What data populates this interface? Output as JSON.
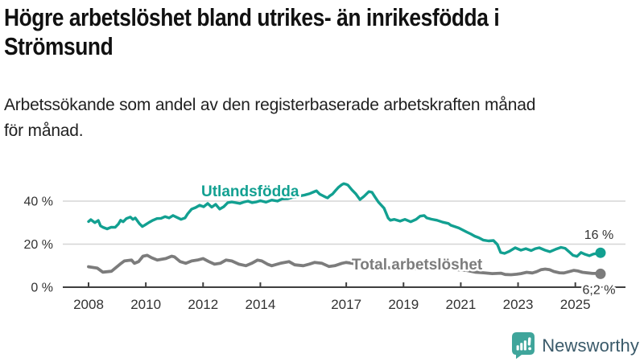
{
  "header": {
    "title_lines": [
      "Högre arbetslöshet bland utrikes- än inrikesfödda i",
      "Strömsund"
    ],
    "subtitle_lines": [
      "Arbetssökande som andel av den registerbaserade arbetskraften månad",
      "för månad."
    ]
  },
  "chart_data": {
    "type": "line",
    "title": "Högre arbetslöshet bland utrikes- än inrikesfödda i Strömsund",
    "subtitle": "Arbetssökande som andel av den registerbaserade arbetskraften månad för månad.",
    "unit": "%",
    "grid": "horizontal",
    "x_axis": {
      "ticks": [
        2008,
        2010,
        2012,
        2014,
        2017,
        2019,
        2021,
        2023,
        2025
      ],
      "range": [
        2008,
        2025.9
      ]
    },
    "y_axis": {
      "ticks": [
        {
          "value": 0,
          "label": "0 %"
        },
        {
          "value": 20,
          "label": "20 %"
        },
        {
          "value": 40,
          "label": "40 %"
        }
      ],
      "range": [
        0,
        50
      ]
    },
    "series": [
      {
        "name": "Utlandsfödda",
        "color": "#12A091",
        "end_label": "16 %",
        "end_value": 16,
        "points": [
          [
            2008.0,
            30.5
          ],
          [
            2008.08,
            31.4
          ],
          [
            2008.22,
            30.0
          ],
          [
            2008.34,
            31.0
          ],
          [
            2008.42,
            28.5
          ],
          [
            2008.51,
            27.8
          ],
          [
            2008.65,
            27.1
          ],
          [
            2008.79,
            27.9
          ],
          [
            2008.93,
            27.8
          ],
          [
            2009.04,
            29.3
          ],
          [
            2009.12,
            31.1
          ],
          [
            2009.21,
            30.4
          ],
          [
            2009.32,
            31.9
          ],
          [
            2009.46,
            32.6
          ],
          [
            2009.55,
            31.5
          ],
          [
            2009.63,
            32.2
          ],
          [
            2009.77,
            29.6
          ],
          [
            2009.88,
            28.2
          ],
          [
            2009.97,
            28.9
          ],
          [
            2010.11,
            30.1
          ],
          [
            2010.25,
            31.1
          ],
          [
            2010.39,
            31.9
          ],
          [
            2010.53,
            32.0
          ],
          [
            2010.67,
            32.8
          ],
          [
            2010.81,
            32.2
          ],
          [
            2010.95,
            33.3
          ],
          [
            2011.09,
            32.4
          ],
          [
            2011.23,
            31.5
          ],
          [
            2011.37,
            32.2
          ],
          [
            2011.46,
            34.1
          ],
          [
            2011.6,
            36.3
          ],
          [
            2011.74,
            37.0
          ],
          [
            2011.88,
            38.1
          ],
          [
            2012.02,
            37.4
          ],
          [
            2012.16,
            38.9
          ],
          [
            2012.3,
            37.2
          ],
          [
            2012.44,
            38.5
          ],
          [
            2012.58,
            36.3
          ],
          [
            2012.72,
            37.4
          ],
          [
            2012.86,
            39.3
          ],
          [
            2013.0,
            39.6
          ],
          [
            2013.14,
            39.3
          ],
          [
            2013.29,
            38.9
          ],
          [
            2013.43,
            39.6
          ],
          [
            2013.57,
            40.0
          ],
          [
            2013.71,
            39.3
          ],
          [
            2013.85,
            39.6
          ],
          [
            2014.0,
            40.2
          ],
          [
            2014.2,
            39.5
          ],
          [
            2014.4,
            40.5
          ],
          [
            2014.6,
            40.0
          ],
          [
            2014.75,
            41.0
          ],
          [
            2014.95,
            41.1
          ],
          [
            2015.14,
            41.8
          ],
          [
            2015.34,
            42.3
          ],
          [
            2015.54,
            42.8
          ],
          [
            2015.73,
            43.5
          ],
          [
            2015.87,
            44.3
          ],
          [
            2015.96,
            44.8
          ],
          [
            2016.07,
            43.3
          ],
          [
            2016.27,
            41.9
          ],
          [
            2016.35,
            41.5
          ],
          [
            2016.43,
            42.5
          ],
          [
            2016.52,
            43.3
          ],
          [
            2016.63,
            45.0
          ],
          [
            2016.72,
            46.3
          ],
          [
            2016.83,
            47.5
          ],
          [
            2016.91,
            48.1
          ],
          [
            2017.0,
            47.8
          ],
          [
            2017.06,
            47.4
          ],
          [
            2017.2,
            45.2
          ],
          [
            2017.34,
            43.3
          ],
          [
            2017.48,
            40.7
          ],
          [
            2017.62,
            42.2
          ],
          [
            2017.79,
            44.4
          ],
          [
            2017.9,
            44.1
          ],
          [
            2018.0,
            42.0
          ],
          [
            2018.12,
            39.6
          ],
          [
            2018.32,
            36.7
          ],
          [
            2018.46,
            32.2
          ],
          [
            2018.54,
            31.1
          ],
          [
            2018.68,
            31.5
          ],
          [
            2018.88,
            30.7
          ],
          [
            2019.05,
            31.5
          ],
          [
            2019.25,
            30.4
          ],
          [
            2019.44,
            31.5
          ],
          [
            2019.58,
            33.0
          ],
          [
            2019.72,
            33.3
          ],
          [
            2019.81,
            32.2
          ],
          [
            2019.98,
            31.6
          ],
          [
            2020.17,
            31.1
          ],
          [
            2020.37,
            30.2
          ],
          [
            2020.57,
            29.6
          ],
          [
            2020.65,
            28.8
          ],
          [
            2020.93,
            27.5
          ],
          [
            2021.21,
            25.6
          ],
          [
            2021.35,
            24.7
          ],
          [
            2021.49,
            23.7
          ],
          [
            2021.63,
            23.0
          ],
          [
            2021.78,
            21.9
          ],
          [
            2021.97,
            21.5
          ],
          [
            2022.14,
            21.7
          ],
          [
            2022.28,
            19.8
          ],
          [
            2022.39,
            16.1
          ],
          [
            2022.53,
            15.7
          ],
          [
            2022.7,
            16.7
          ],
          [
            2022.9,
            18.3
          ],
          [
            2023.1,
            17.2
          ],
          [
            2023.27,
            17.9
          ],
          [
            2023.46,
            17.0
          ],
          [
            2023.6,
            17.9
          ],
          [
            2023.74,
            18.3
          ],
          [
            2023.94,
            17.2
          ],
          [
            2024.11,
            16.5
          ],
          [
            2024.31,
            17.6
          ],
          [
            2024.5,
            18.5
          ],
          [
            2024.64,
            18.1
          ],
          [
            2024.78,
            16.5
          ],
          [
            2024.92,
            14.8
          ],
          [
            2025.06,
            14.3
          ],
          [
            2025.2,
            16.1
          ],
          [
            2025.35,
            15.2
          ],
          [
            2025.49,
            14.6
          ],
          [
            2025.63,
            15.4
          ],
          [
            2025.77,
            15.7
          ],
          [
            2025.88,
            16.0
          ]
        ]
      },
      {
        "name": "Total arbetslöshet",
        "color": "#7C7C7C",
        "end_label": "6,2 %",
        "end_value": 6.2,
        "points": [
          [
            2008.0,
            9.5
          ],
          [
            2008.3,
            8.9
          ],
          [
            2008.5,
            7.0
          ],
          [
            2008.8,
            7.4
          ],
          [
            2009.1,
            10.7
          ],
          [
            2009.25,
            12.2
          ],
          [
            2009.5,
            12.6
          ],
          [
            2009.6,
            11.1
          ],
          [
            2009.75,
            11.9
          ],
          [
            2009.9,
            14.4
          ],
          [
            2010.05,
            14.8
          ],
          [
            2010.2,
            13.7
          ],
          [
            2010.4,
            12.6
          ],
          [
            2010.7,
            13.3
          ],
          [
            2010.9,
            14.4
          ],
          [
            2011.0,
            14.1
          ],
          [
            2011.2,
            11.9
          ],
          [
            2011.4,
            11.1
          ],
          [
            2011.6,
            12.2
          ],
          [
            2011.8,
            12.6
          ],
          [
            2012.0,
            13.3
          ],
          [
            2012.2,
            11.9
          ],
          [
            2012.4,
            10.7
          ],
          [
            2012.6,
            11.1
          ],
          [
            2012.8,
            12.6
          ],
          [
            2013.0,
            12.2
          ],
          [
            2013.25,
            10.7
          ],
          [
            2013.5,
            10.0
          ],
          [
            2013.7,
            11.1
          ],
          [
            2013.9,
            12.6
          ],
          [
            2014.05,
            12.2
          ],
          [
            2014.25,
            10.7
          ],
          [
            2014.4,
            10.0
          ],
          [
            2014.7,
            11.1
          ],
          [
            2015.0,
            11.9
          ],
          [
            2015.2,
            10.4
          ],
          [
            2015.5,
            10.0
          ],
          [
            2015.7,
            10.7
          ],
          [
            2015.9,
            11.5
          ],
          [
            2016.15,
            11.1
          ],
          [
            2016.4,
            9.6
          ],
          [
            2016.6,
            10.0
          ],
          [
            2016.85,
            11.1
          ],
          [
            2017.0,
            11.5
          ],
          [
            2017.2,
            11.1
          ],
          [
            2017.5,
            10.4
          ],
          [
            2017.8,
            10.0
          ],
          [
            2018.0,
            10.4
          ],
          [
            2018.3,
            9.3
          ],
          [
            2018.6,
            8.9
          ],
          [
            2018.9,
            9.3
          ],
          [
            2019.2,
            8.9
          ],
          [
            2019.5,
            8.5
          ],
          [
            2019.8,
            8.9
          ],
          [
            2020.0,
            9.3
          ],
          [
            2020.3,
            9.6
          ],
          [
            2020.6,
            8.9
          ],
          [
            2020.9,
            8.1
          ],
          [
            2021.2,
            7.8
          ],
          [
            2021.5,
            7.0
          ],
          [
            2021.8,
            6.7
          ],
          [
            2022.1,
            6.3
          ],
          [
            2022.4,
            6.5
          ],
          [
            2022.55,
            5.9
          ],
          [
            2022.75,
            5.8
          ],
          [
            2022.95,
            6.0
          ],
          [
            2023.1,
            6.3
          ],
          [
            2023.3,
            6.9
          ],
          [
            2023.5,
            6.6
          ],
          [
            2023.65,
            7.2
          ],
          [
            2023.8,
            8.1
          ],
          [
            2023.95,
            8.4
          ],
          [
            2024.1,
            8.1
          ],
          [
            2024.25,
            7.3
          ],
          [
            2024.45,
            6.7
          ],
          [
            2024.6,
            6.6
          ],
          [
            2024.78,
            7.2
          ],
          [
            2024.95,
            7.8
          ],
          [
            2025.1,
            7.5
          ],
          [
            2025.25,
            6.9
          ],
          [
            2025.45,
            6.6
          ],
          [
            2025.6,
            6.4
          ],
          [
            2025.75,
            6.4
          ],
          [
            2025.88,
            6.2
          ]
        ]
      }
    ]
  },
  "branding": {
    "logo_text": "Newsworthy",
    "icon_name": "newsworthy-speech-bubble-chart-icon",
    "icon_color": "#3FA59B",
    "text_color": "#3A5A6A"
  },
  "colors": {
    "accent_teal": "#12A091",
    "series_gray": "#7C7C7C",
    "axis": "#3F3F3F",
    "gridline": "#D6D6D6",
    "tick_label": "#333333"
  }
}
